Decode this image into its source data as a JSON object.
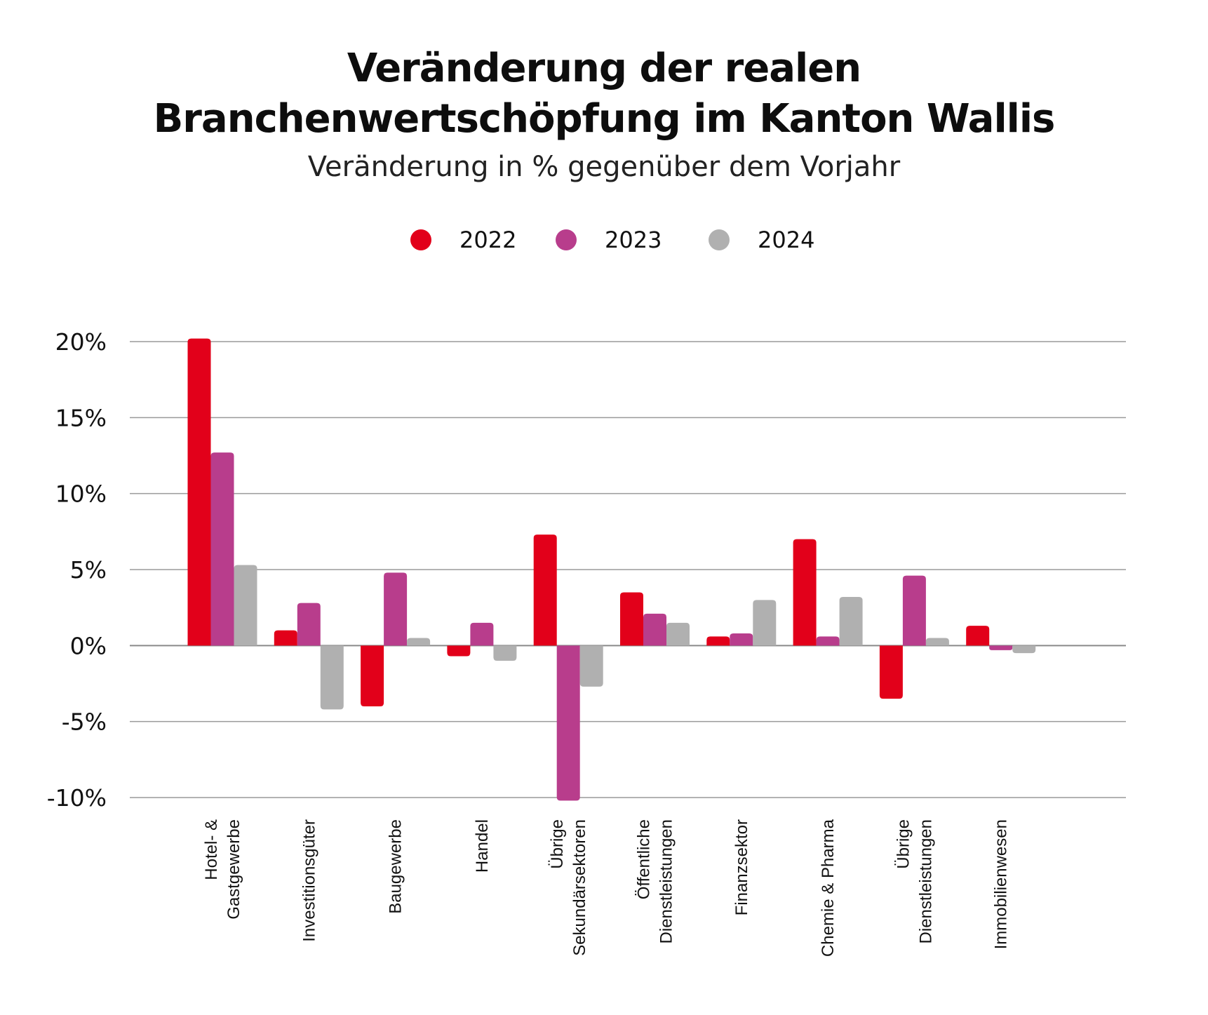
{
  "chart_data": {
    "type": "bar",
    "title_lines": [
      "Veränderung der realen",
      "Branchenwertschöpfung im Kanton Wallis"
    ],
    "subtitle": "Veränderung in % gegenüber dem Vorjahr",
    "xlabel": "",
    "ylabel": "",
    "ylim": [
      -10,
      20
    ],
    "yticks": [
      20,
      15,
      10,
      5,
      0,
      -5,
      -10
    ],
    "ytick_labels": [
      "20%",
      "15%",
      "10%",
      "5%",
      "0%",
      "-5%",
      "-10%"
    ],
    "grid": true,
    "legend_position": "top-center",
    "categories": [
      [
        "Hotel- &",
        "Gastgewerbe"
      ],
      [
        "Investitionsgüter"
      ],
      [
        "Baugewerbe"
      ],
      [
        "Handel"
      ],
      [
        "Übrige",
        "Sekundärsektoren"
      ],
      [
        "Öffentliche",
        "Dienstleistungen"
      ],
      [
        "Finanzsektor"
      ],
      [
        "Chemie & Pharma"
      ],
      [
        "Übrige",
        "Dienstleistungen"
      ],
      [
        "Immobilienwesen"
      ]
    ],
    "series": [
      {
        "name": "2022",
        "color": "#e2001a",
        "values": [
          20.2,
          1.0,
          -4.0,
          -0.7,
          7.3,
          3.5,
          0.6,
          7.0,
          -3.5,
          1.3
        ]
      },
      {
        "name": "2023",
        "color": "#b83d8c",
        "values": [
          12.7,
          2.8,
          4.8,
          1.5,
          -10.2,
          2.1,
          0.8,
          0.6,
          4.6,
          -0.3
        ]
      },
      {
        "name": "2024",
        "color": "#b0b0b0",
        "values": [
          5.3,
          -4.2,
          0.5,
          -1.0,
          -2.7,
          1.5,
          3.0,
          3.2,
          0.5,
          -0.5
        ]
      }
    ]
  }
}
